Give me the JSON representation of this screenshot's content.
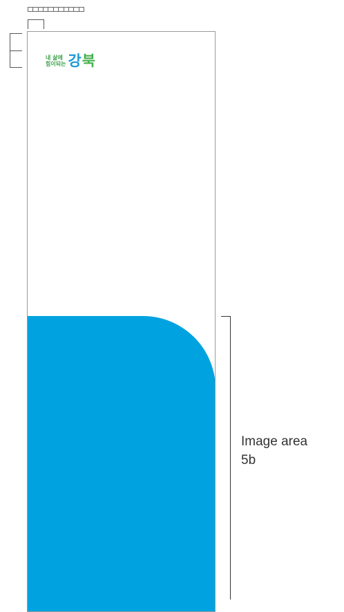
{
  "logo": {
    "tagline_line1": "내 삶에",
    "tagline_line2": "힘이되는",
    "mark_part1": "강",
    "mark_part2": "북"
  },
  "image_area": {
    "label_line1": "Image area",
    "label_line2": "5b",
    "color": "#00a3e0"
  },
  "colors": {
    "logo_green": "#44b04a",
    "logo_blue": "#1f9ad6",
    "guide_lines": "#555555"
  }
}
